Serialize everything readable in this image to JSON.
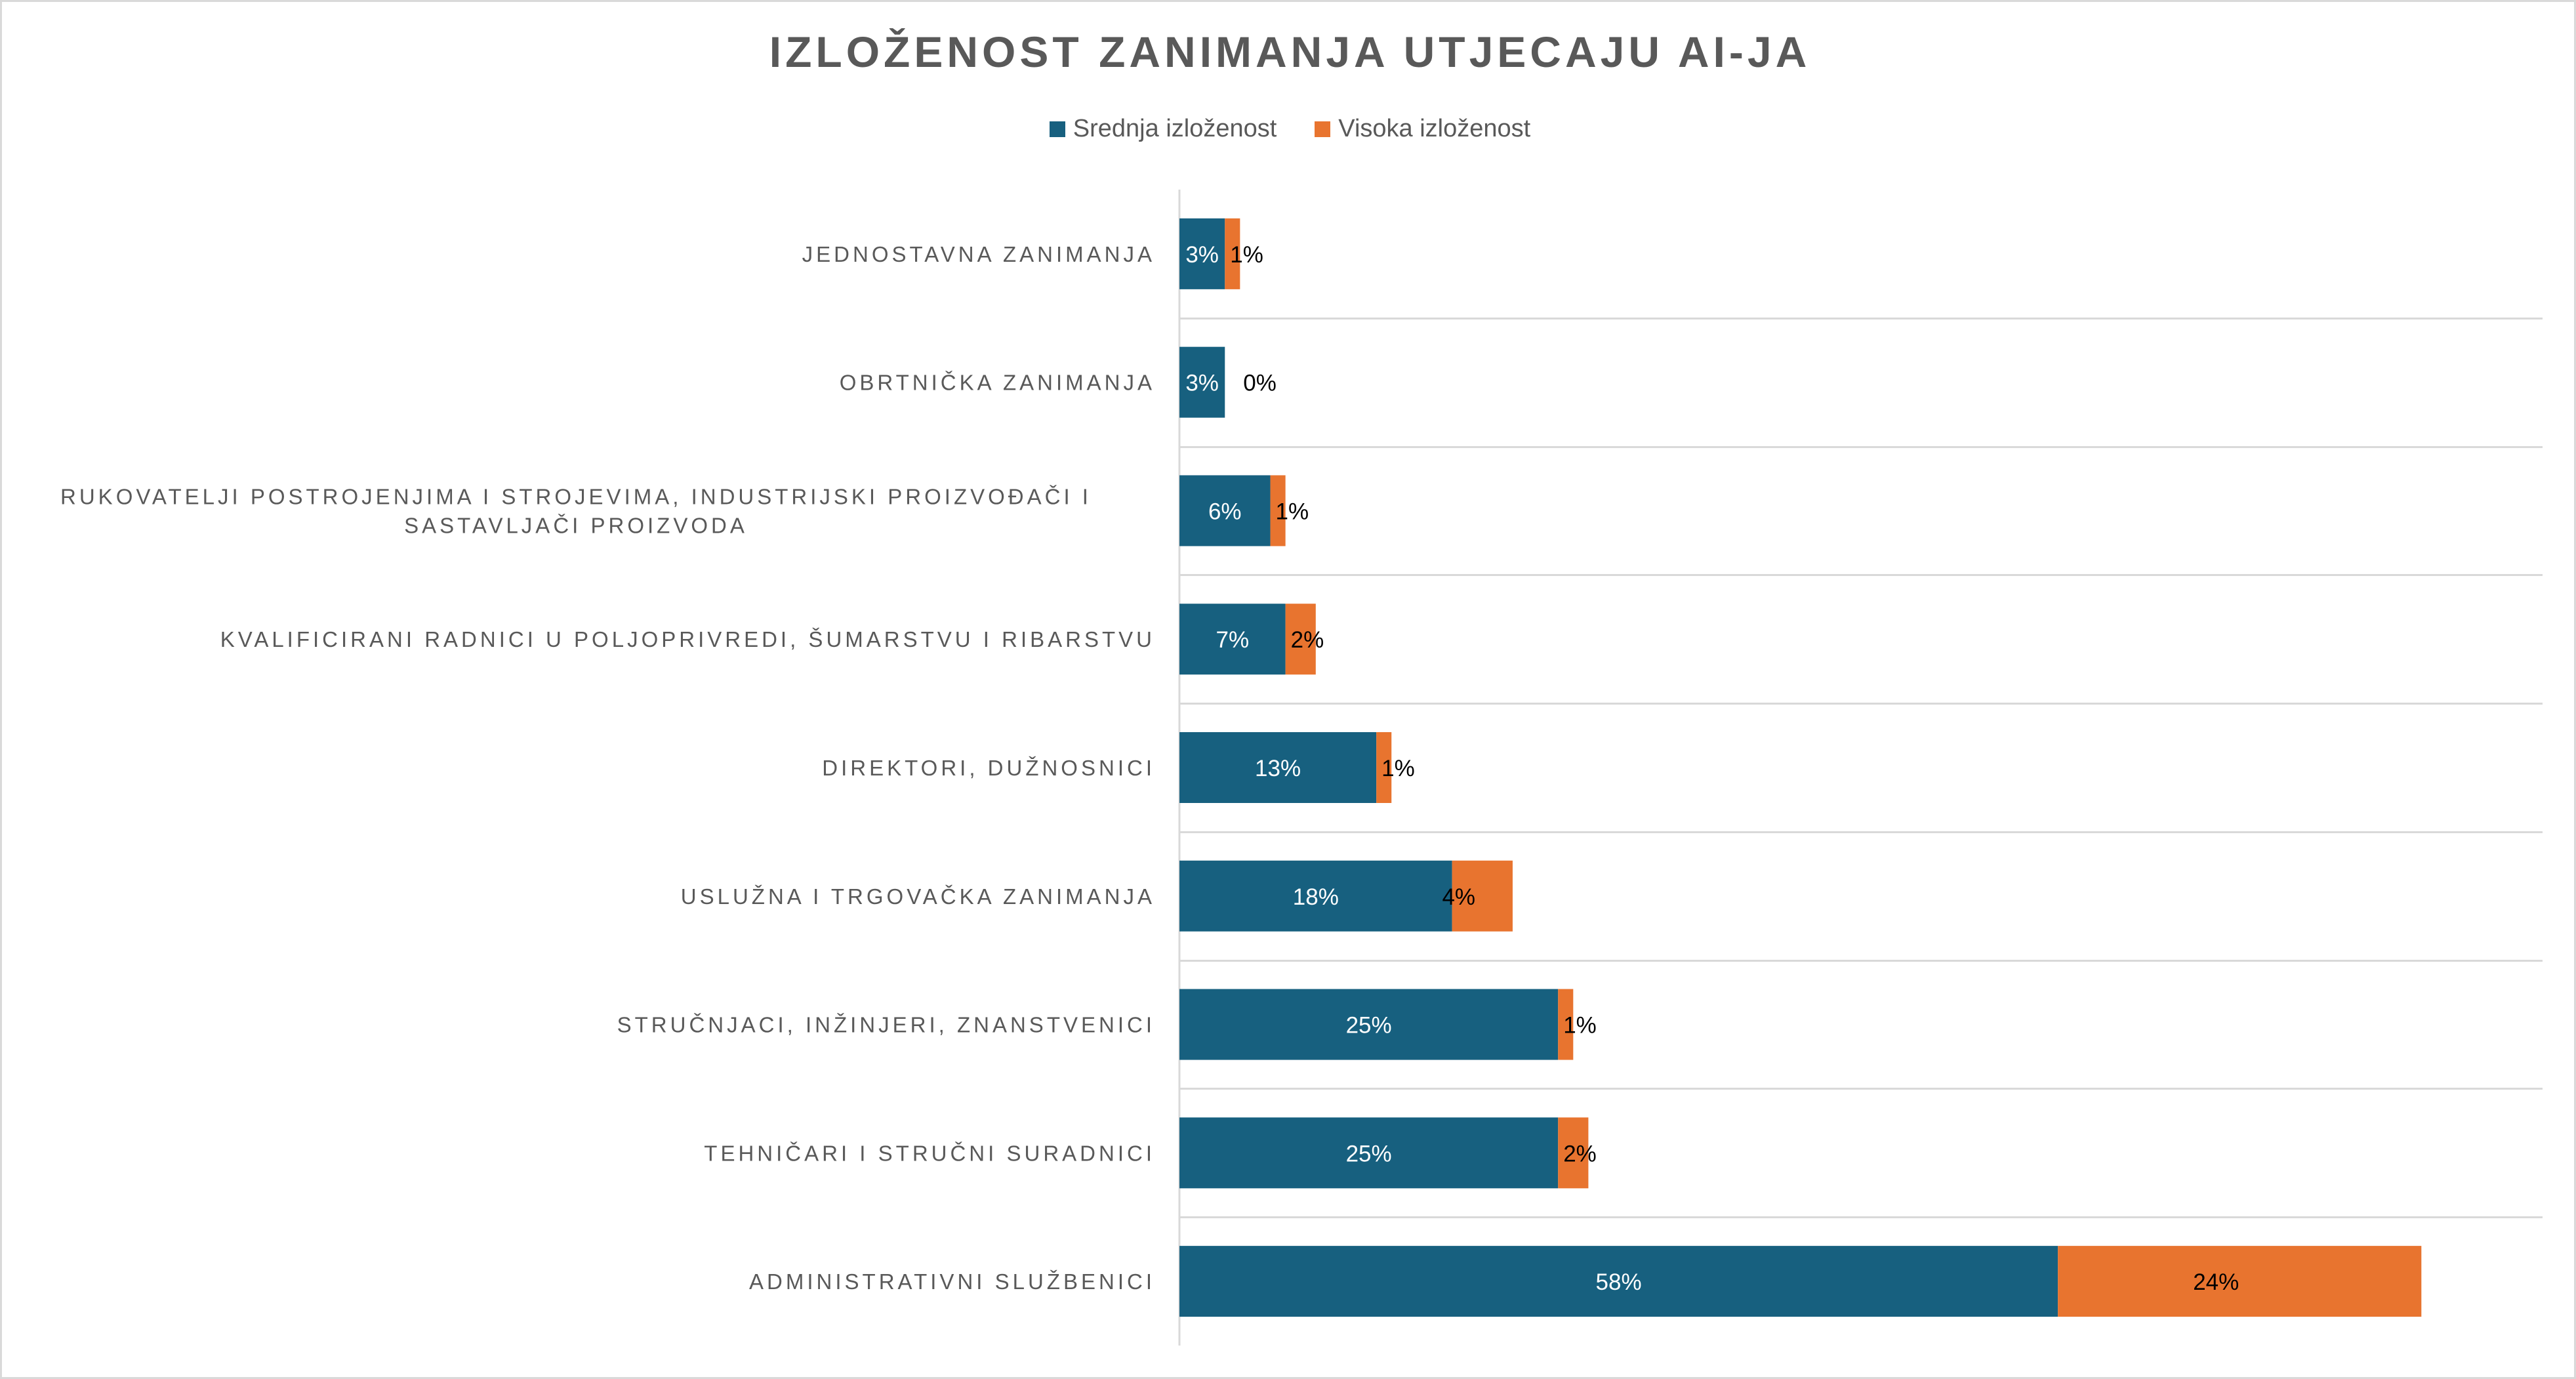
{
  "chart_data": {
    "type": "bar",
    "orientation": "horizontal",
    "stacked": true,
    "title": "IZLOŽENOST ZANIMANJA UTJECAJU AI-JA",
    "legend_position": "top",
    "gridlines": true,
    "xlim": [
      0,
      0.9
    ],
    "categories": [
      "JEDNOSTAVNA ZANIMANJA",
      "OBRTNIČKA ZANIMANJA",
      "RUKOVATELJI POSTROJENJIMA I STROJEVIMA, INDUSTRIJSKI PROIZVOĐAČI I SASTAVLJAČI PROIZVODA",
      "KVALIFICIRANI RADNICI U POLJOPRIVREDI, ŠUMARSTVU I RIBARSTVU",
      "DIREKTORI, DUŽNOSNICI",
      "USLUŽNA I TRGOVAČKA ZANIMANJA",
      "STRUČNJACI, INŽINJERI, ZNANSTVENICI",
      "TEHNIČARI I STRUČNI SURADNICI",
      "ADMINISTRATIVNI SLUŽBENICI"
    ],
    "series": [
      {
        "name": "Srednja izloženost",
        "color": "#17607f",
        "values": [
          0.03,
          0.03,
          0.06,
          0.07,
          0.13,
          0.18,
          0.25,
          0.25,
          0.58
        ],
        "labels": [
          "3%",
          "3%",
          "6%",
          "7%",
          "13%",
          "18%",
          "25%",
          "25%",
          "58%"
        ]
      },
      {
        "name": "Visoka izloženost",
        "color": "#e8742f",
        "values": [
          0.01,
          0.0,
          0.01,
          0.02,
          0.01,
          0.04,
          0.01,
          0.02,
          0.24
        ],
        "labels": [
          "1%",
          "0%",
          "1%",
          "2%",
          "1%",
          "4%",
          "1%",
          "2%",
          "24%"
        ]
      }
    ]
  }
}
